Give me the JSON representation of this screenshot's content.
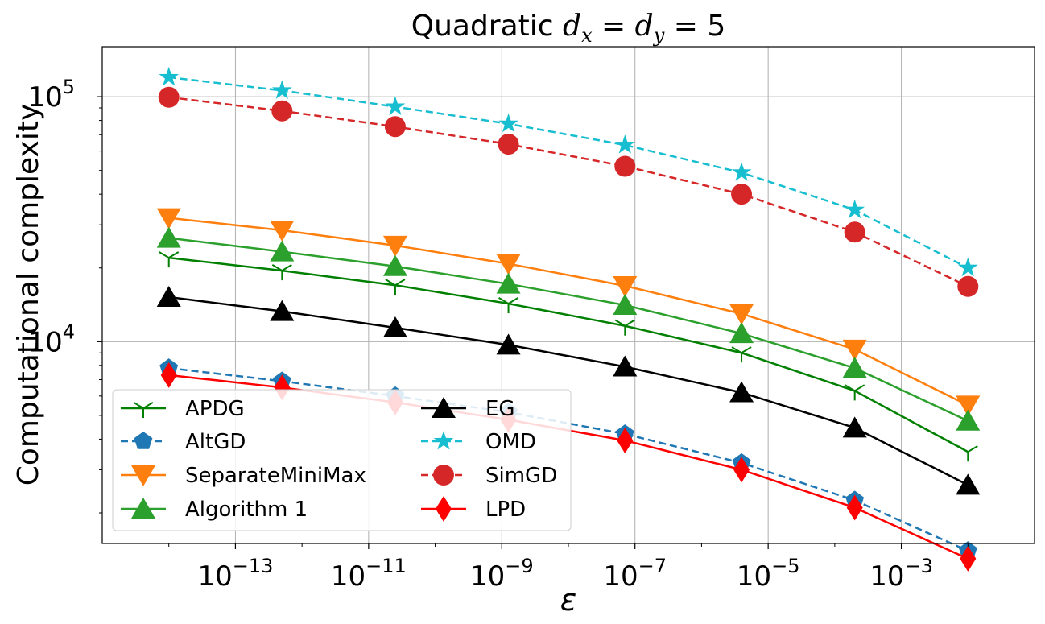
{
  "chart_data": {
    "type": "line",
    "title": "Quadratic $d_x = d_y = 5$",
    "title_parts": {
      "prefix": "Quadratic ",
      "expr": "d",
      "sub1": "x",
      "sub2": "y",
      "eq": " = ",
      "val": "5"
    },
    "xlabel": "ε",
    "ylabel": "Computational complexity",
    "x_scale": "log",
    "y_scale": "log",
    "xlim": [
      1e-15,
      0.1
    ],
    "ylim": [
      1500,
      160000
    ],
    "grid": true,
    "legend_placement": "lower-left",
    "legend_columns": 2,
    "x_ticks": [
      {
        "exp": -13,
        "base": "10",
        "sup": "−13"
      },
      {
        "exp": -11,
        "base": "10",
        "sup": "−11"
      },
      {
        "exp": -9,
        "base": "10",
        "sup": "−9"
      },
      {
        "exp": -7,
        "base": "10",
        "sup": "−7"
      },
      {
        "exp": -5,
        "base": "10",
        "sup": "−5"
      },
      {
        "exp": -3,
        "base": "10",
        "sup": "−3"
      }
    ],
    "y_ticks": [
      {
        "exp": 4,
        "base": "10",
        "sup": "4"
      },
      {
        "exp": 5,
        "base": "10",
        "sup": "5"
      }
    ],
    "x_markers_log10": [
      -14.0,
      -12.3,
      -10.6,
      -8.9,
      -7.15,
      -5.4,
      -3.7,
      -2.0
    ],
    "series": [
      {
        "name": "APDG",
        "color": "#008000",
        "dash": "solid",
        "marker": "tri_down",
        "values": [
          22000,
          19500,
          17000,
          14300,
          11600,
          9000,
          6300,
          3550
        ]
      },
      {
        "name": "AltGD",
        "color": "#1f77b4",
        "dash": "dashed",
        "marker": "pentagon",
        "values": [
          7800,
          6900,
          6000,
          5150,
          4200,
          3200,
          2250,
          1400
        ]
      },
      {
        "name": "SeparateMiniMax",
        "color": "#ff7f0e",
        "dash": "solid",
        "marker": "triangle_down",
        "values": [
          32000,
          28500,
          24700,
          20800,
          16900,
          13000,
          9300,
          5500
        ]
      },
      {
        "name": "Algorithm 1",
        "color": "#2ca02c",
        "dash": "solid",
        "marker": "triangle_up",
        "values": [
          26500,
          23300,
          20300,
          17200,
          14100,
          10800,
          7800,
          4750
        ]
      },
      {
        "name": "EG",
        "color": "#000000",
        "dash": "solid",
        "marker": "triangle_up",
        "values": [
          15200,
          13300,
          11400,
          9700,
          7900,
          6200,
          4450,
          2600
        ]
      },
      {
        "name": "OMD",
        "color": "#17becf",
        "dash": "dashed",
        "marker": "star",
        "values": [
          120000,
          106000,
          91000,
          77500,
          63500,
          49000,
          34500,
          20000
        ]
      },
      {
        "name": "SimGD",
        "color": "#d62728",
        "dash": "dashed",
        "marker": "circle",
        "values": [
          99500,
          87500,
          75500,
          64000,
          52000,
          40000,
          28000,
          16800
        ]
      },
      {
        "name": "LPD",
        "color": "#ff0000",
        "dash": "solid",
        "marker": "diamond",
        "values": [
          7300,
          6500,
          5650,
          4800,
          3950,
          3000,
          2100,
          1300
        ]
      }
    ]
  }
}
